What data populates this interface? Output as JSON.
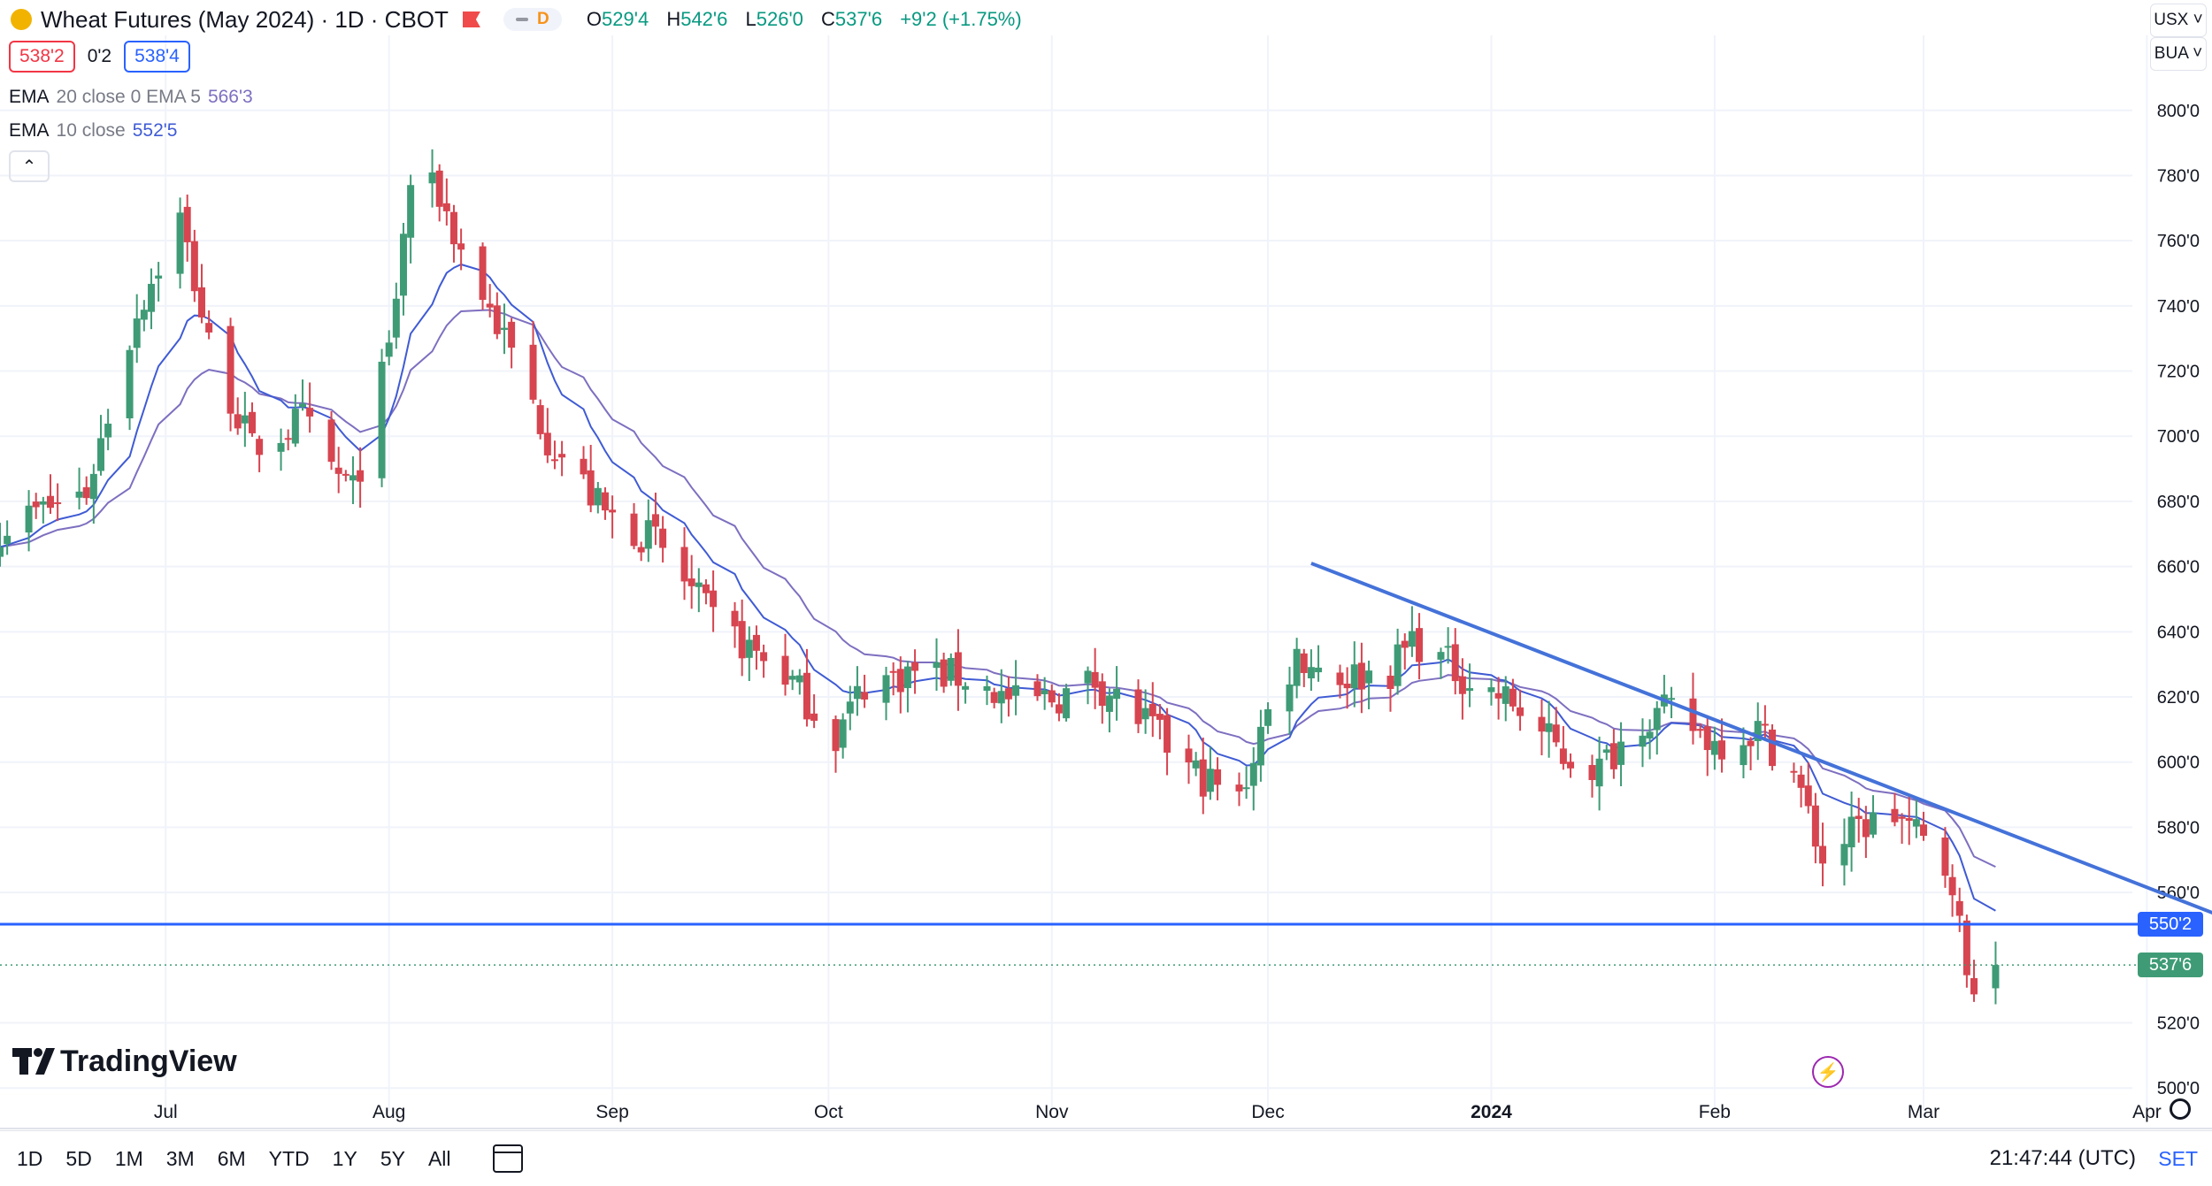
{
  "header": {
    "title": "Wheat Futures (May 2024) · 1D · CBOT",
    "pill_letter": "D",
    "ohlc": {
      "o_label": "O",
      "o": "529'4",
      "h_label": "H",
      "h": "542'6",
      "l_label": "L",
      "l": "526'0",
      "c_label": "C",
      "c": "537'6",
      "chg": "+9'2 (+1.75%)"
    },
    "bid": "538'2",
    "spread": "0'2",
    "ask": "538'4"
  },
  "indicators": [
    {
      "name": "EMA",
      "params": "20 close 0 EMA 5",
      "value": "566'3",
      "color": "#7e6fc0"
    },
    {
      "name": "EMA",
      "params": "10 close",
      "value": "552'5",
      "color": "#3f5bd4"
    }
  ],
  "collapse_glyph": "⌃",
  "selectors": {
    "currency": "USX ˅",
    "unit": "BUA ˅"
  },
  "watermark": "TradingView",
  "range_buttons": [
    "1D",
    "5D",
    "1M",
    "3M",
    "6M",
    "YTD",
    "1Y",
    "5Y",
    "All"
  ],
  "clock": "21:47:44 (UTC)",
  "settings_label": "SET",
  "colors": {
    "up": "#3f9b76",
    "down": "#d64550",
    "ema_fast": "#3f5bd4",
    "ema_slow": "#7e6fc0",
    "hline": "#2962ff",
    "trend": "#4472d9"
  },
  "price_badges": {
    "hline": "550'2",
    "last": "537'6"
  },
  "icons": [
    "flag-icon",
    "calendar-icon",
    "flash-icon",
    "gear-icon",
    "chevron-up-icon"
  ],
  "chart_data": {
    "type": "candlestick",
    "x_tick_labels": [
      "Jul",
      "Aug",
      "Sep",
      "Oct",
      "Nov",
      "Dec",
      "2024",
      "Feb",
      "Mar",
      "Apr"
    ],
    "x_tick_dates": [
      "2023-07-01",
      "2023-08-01",
      "2023-09-01",
      "2023-10-01",
      "2023-11-01",
      "2023-12-01",
      "2024-01-01",
      "2024-02-01",
      "2024-03-01",
      "2024-04-01"
    ],
    "y_ticks": [
      800,
      780,
      760,
      740,
      720,
      700,
      680,
      660,
      640,
      620,
      600,
      580,
      560,
      520,
      500
    ],
    "y_tick_labels": [
      "800'0",
      "780'0",
      "760'0",
      "740'0",
      "720'0",
      "700'0",
      "680'0",
      "660'0",
      "640'0",
      "620'0",
      "600'0",
      "580'0",
      "560'0",
      "520'0",
      "500'0"
    ],
    "ylim": [
      493,
      823
    ],
    "xlim": [
      "2023-06-08",
      "2024-04-12"
    ],
    "horizontal_line": 550.25,
    "last_close": 537.75,
    "trendline": [
      [
        "2023-12-07",
        661
      ],
      [
        "2024-04-11",
        553
      ]
    ],
    "anchors": [
      [
        "2023-06-08",
        672
      ],
      [
        "2023-06-20",
        683
      ],
      [
        "2023-06-27",
        738
      ],
      [
        "2023-07-03",
        767
      ],
      [
        "2023-07-07",
        728
      ],
      [
        "2023-07-13",
        696
      ],
      [
        "2023-07-20",
        705
      ],
      [
        "2023-07-24",
        690
      ],
      [
        "2023-07-27",
        683
      ],
      [
        "2023-08-01",
        726
      ],
      [
        "2023-08-04",
        778
      ],
      [
        "2023-08-08",
        774
      ],
      [
        "2023-08-11",
        757
      ],
      [
        "2023-08-17",
        730
      ],
      [
        "2023-08-23",
        700
      ],
      [
        "2023-08-31",
        676
      ],
      [
        "2023-09-07",
        668
      ],
      [
        "2023-09-15",
        643
      ],
      [
        "2023-09-25",
        627
      ],
      [
        "2023-10-02",
        608
      ],
      [
        "2023-10-06",
        624
      ],
      [
        "2023-10-13",
        628
      ],
      [
        "2023-10-20",
        626
      ],
      [
        "2023-10-27",
        618
      ],
      [
        "2023-11-02",
        620
      ],
      [
        "2023-11-07",
        625
      ],
      [
        "2023-11-14",
        612
      ],
      [
        "2023-11-20",
        598
      ],
      [
        "2023-11-27",
        588
      ],
      [
        "2023-11-30",
        610
      ],
      [
        "2023-12-05",
        633
      ],
      [
        "2023-12-11",
        626
      ],
      [
        "2023-12-18",
        628
      ],
      [
        "2023-12-21",
        638
      ],
      [
        "2023-12-29",
        625
      ],
      [
        "2024-01-04",
        618
      ],
      [
        "2024-01-11",
        602
      ],
      [
        "2024-01-16",
        598
      ],
      [
        "2024-01-22",
        614
      ],
      [
        "2024-01-26",
        615
      ],
      [
        "2024-02-01",
        606
      ],
      [
        "2024-02-07",
        610
      ],
      [
        "2024-02-12",
        597
      ],
      [
        "2024-02-16",
        570
      ],
      [
        "2024-02-21",
        580
      ],
      [
        "2024-02-26",
        584
      ],
      [
        "2024-02-28",
        580
      ],
      [
        "2024-03-05",
        565
      ],
      [
        "2024-03-07",
        533
      ],
      [
        "2024-03-11",
        537.75
      ]
    ]
  }
}
